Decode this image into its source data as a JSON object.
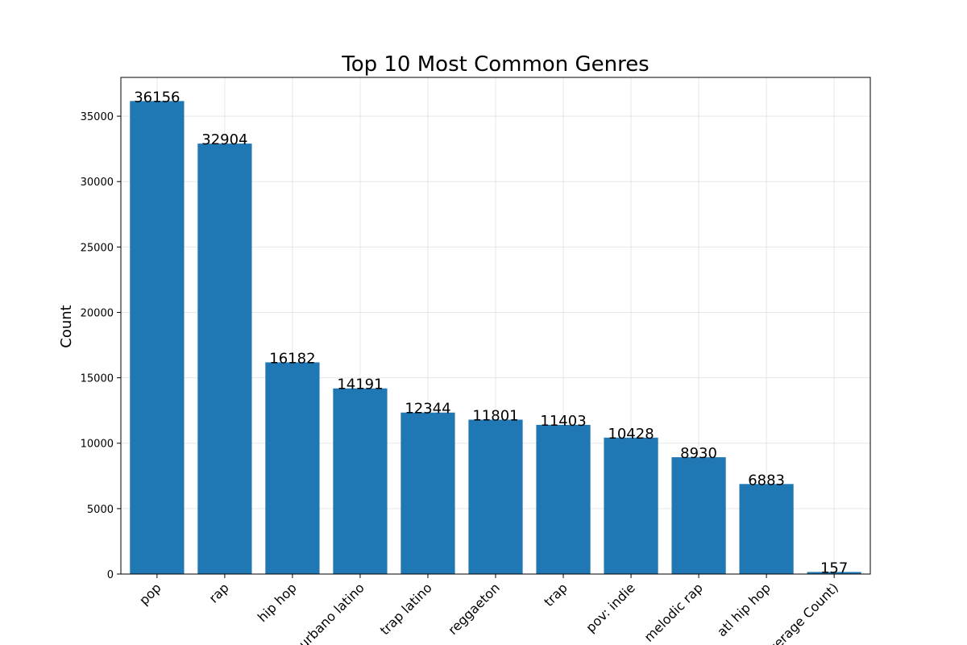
{
  "chart_data": {
    "type": "bar",
    "title": "Top 10 Most Common Genres",
    "xlabel": "",
    "ylabel": "Count",
    "categories": [
      "pop",
      "rap",
      "hip hop",
      "urbano latino",
      "trap latino",
      "reggaeton",
      "trap",
      "pov: indie",
      "melodic rap",
      "atl hip hop",
      "(Average Count)"
    ],
    "values": [
      36156,
      32904,
      16182,
      14191,
      12344,
      11801,
      11403,
      10428,
      8930,
      6883,
      157
    ],
    "data_labels": [
      "36156",
      "32904",
      "16182",
      "14191",
      "12344",
      "11801",
      "11403",
      "10428",
      "8930",
      "6883",
      "157"
    ],
    "yticks": [
      0,
      5000,
      10000,
      15000,
      20000,
      25000,
      30000,
      35000
    ],
    "ytick_labels": [
      "0",
      "5000",
      "10000",
      "15000",
      "20000",
      "25000",
      "30000",
      "35000"
    ],
    "ylim": [
      0,
      37964
    ],
    "grid": true,
    "bar_color": "#1f77b4"
  }
}
